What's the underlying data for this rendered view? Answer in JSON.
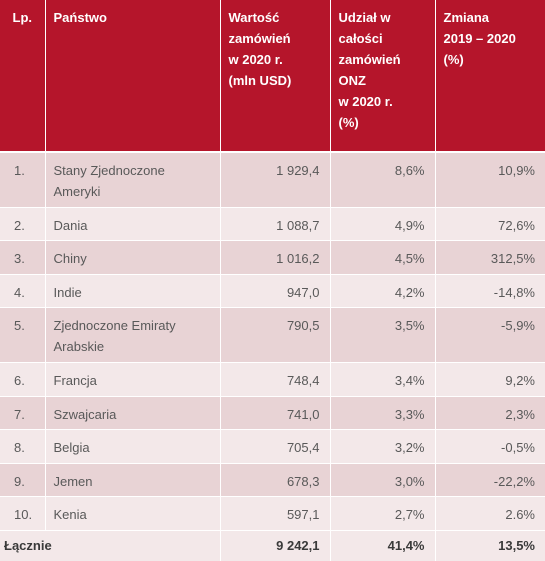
{
  "headers": {
    "lp": "Lp.",
    "country": "Państwo",
    "value": "Wartość\nzamówień\nw 2020 r.\n(mln USD)",
    "share": "Udział w\ncałości\nzamówień\nONZ\nw 2020 r.\n(%)",
    "change": "Zmiana\n2019 – 2020\n(%)"
  },
  "rows": [
    {
      "lp": "1.",
      "country": "Stany Zjednoczone Ameryki",
      "value": "1 929,4",
      "share": "8,6%",
      "change": "10,9%"
    },
    {
      "lp": "2.",
      "country": "Dania",
      "value": "1 088,7",
      "share": "4,9%",
      "change": "72,6%"
    },
    {
      "lp": "3.",
      "country": "Chiny",
      "value": "1 016,2",
      "share": "4,5%",
      "change": "312,5%"
    },
    {
      "lp": "4.",
      "country": "Indie",
      "value": "947,0",
      "share": "4,2%",
      "change": "-14,8%"
    },
    {
      "lp": "5.",
      "country": "Zjednoczone Emiraty Arabskie",
      "value": "790,5",
      "share": "3,5%",
      "change": "-5,9%"
    },
    {
      "lp": "6.",
      "country": "Francja",
      "value": "748,4",
      "share": "3,4%",
      "change": "9,2%"
    },
    {
      "lp": "7.",
      "country": "Szwajcaria",
      "value": "741,0",
      "share": "3,3%",
      "change": "2,3%"
    },
    {
      "lp": "8.",
      "country": "Belgia",
      "value": "705,4",
      "share": "3,2%",
      "change": "-0,5%"
    },
    {
      "lp": "9.",
      "country": "Jemen",
      "value": "678,3",
      "share": "3,0%",
      "change": "-22,2%"
    },
    {
      "lp": "10.",
      "country": "Kenia",
      "value": "597,1",
      "share": "2,7%",
      "change": "2.6%"
    }
  ],
  "total": {
    "label": "Łącznie",
    "value": "9 242,1",
    "share": "41,4%",
    "change": "13,5%"
  },
  "colors": {
    "header_bg": "#b5152b",
    "row_dark": "#e8d3d5",
    "row_light": "#f3e8e9"
  }
}
